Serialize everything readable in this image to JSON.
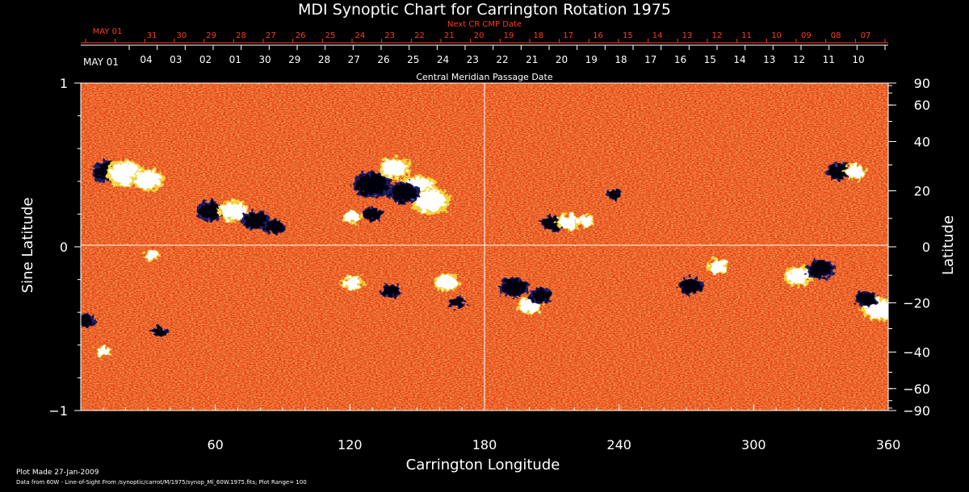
{
  "chart_data": {
    "type": "heatmap",
    "title": "MDI Synoptic Chart for Carrington Rotation 1975",
    "xlabel": "Carrington Longitude",
    "ylabel_left": "Sine Latitude",
    "ylabel_right": "Latitude",
    "xlim": [
      0,
      360
    ],
    "ylim": [
      -1,
      1
    ],
    "x_ticks": [
      60,
      120,
      180,
      240,
      300,
      360
    ],
    "y_left_ticks": [
      {
        "value": 1,
        "label": "1"
      },
      {
        "value": 0,
        "label": "0"
      },
      {
        "value": -1,
        "label": "−1"
      }
    ],
    "y_right_ticks": [
      90,
      60,
      40,
      20,
      0,
      -20,
      -40,
      -60,
      -90
    ],
    "grid": "lines at longitude 180 and sine latitude 0",
    "top_axis_red": {
      "title": "Next CR CMP Date",
      "labels": [
        "MAY 01",
        "31",
        "30",
        "29",
        "28",
        "27",
        "26",
        "25",
        "24",
        "23",
        "22",
        "21",
        "20",
        "19",
        "18",
        "17",
        "16",
        "15",
        "14",
        "13",
        "12",
        "11",
        "10",
        "09",
        "08",
        "07"
      ]
    },
    "top_axis_white": {
      "title": "Central Meridian Passage Date",
      "labels": [
        "MAY 01",
        "04",
        "03",
        "02",
        "01",
        "30",
        "29",
        "28",
        "27",
        "26",
        "25",
        "24",
        "23",
        "22",
        "21",
        "20",
        "19",
        "18",
        "17",
        "16",
        "15",
        "14",
        "13",
        "12",
        "11",
        "10"
      ]
    },
    "footer_line1": "Plot Made 27-Jan-2009",
    "footer_line2": "Data from 60W - Line-of-Sight From /synoptic/carrot/M/1975/synop_Ml_60W.1975.fits; Plot Range= 100",
    "active_regions": [
      {
        "lon": 12,
        "sinlat": 0.46,
        "polarity": "negative",
        "size": 1.0
      },
      {
        "lon": 20,
        "sinlat": 0.45,
        "polarity": "positive",
        "size": 1.2
      },
      {
        "lon": 30,
        "sinlat": 0.41,
        "polarity": "positive",
        "size": 1.0
      },
      {
        "lon": 58,
        "sinlat": 0.22,
        "polarity": "negative",
        "size": 0.9
      },
      {
        "lon": 68,
        "sinlat": 0.22,
        "polarity": "positive",
        "size": 1.0
      },
      {
        "lon": 78,
        "sinlat": 0.16,
        "polarity": "negative",
        "size": 0.9
      },
      {
        "lon": 86,
        "sinlat": 0.12,
        "polarity": "negative",
        "size": 0.7
      },
      {
        "lon": 130,
        "sinlat": 0.38,
        "polarity": "negative",
        "size": 1.2
      },
      {
        "lon": 140,
        "sinlat": 0.48,
        "polarity": "positive",
        "size": 1.0
      },
      {
        "lon": 150,
        "sinlat": 0.35,
        "polarity": "positive",
        "size": 1.3
      },
      {
        "lon": 156,
        "sinlat": 0.28,
        "polarity": "positive",
        "size": 1.2
      },
      {
        "lon": 144,
        "sinlat": 0.33,
        "polarity": "negative",
        "size": 1.0
      },
      {
        "lon": 121,
        "sinlat": 0.18,
        "polarity": "positive",
        "size": 0.6
      },
      {
        "lon": 130,
        "sinlat": 0.2,
        "polarity": "negative",
        "size": 0.6
      },
      {
        "lon": 210,
        "sinlat": 0.14,
        "polarity": "negative",
        "size": 0.7
      },
      {
        "lon": 218,
        "sinlat": 0.15,
        "polarity": "positive",
        "size": 0.8
      },
      {
        "lon": 225,
        "sinlat": 0.16,
        "polarity": "positive",
        "size": 0.6
      },
      {
        "lon": 238,
        "sinlat": 0.32,
        "polarity": "negative",
        "size": 0.5
      },
      {
        "lon": 338,
        "sinlat": 0.46,
        "polarity": "negative",
        "size": 0.8
      },
      {
        "lon": 345,
        "sinlat": 0.46,
        "polarity": "positive",
        "size": 0.7
      },
      {
        "lon": 193,
        "sinlat": -0.25,
        "polarity": "negative",
        "size": 0.9
      },
      {
        "lon": 200,
        "sinlat": -0.36,
        "polarity": "positive",
        "size": 0.8
      },
      {
        "lon": 205,
        "sinlat": -0.3,
        "polarity": "negative",
        "size": 0.7
      },
      {
        "lon": 121,
        "sinlat": -0.22,
        "polarity": "positive",
        "size": 0.7
      },
      {
        "lon": 138,
        "sinlat": -0.27,
        "polarity": "negative",
        "size": 0.6
      },
      {
        "lon": 163,
        "sinlat": -0.22,
        "polarity": "positive",
        "size": 0.8
      },
      {
        "lon": 168,
        "sinlat": -0.34,
        "polarity": "negative",
        "size": 0.5
      },
      {
        "lon": 272,
        "sinlat": -0.24,
        "polarity": "negative",
        "size": 0.8
      },
      {
        "lon": 284,
        "sinlat": -0.12,
        "polarity": "positive",
        "size": 0.7
      },
      {
        "lon": 320,
        "sinlat": -0.18,
        "polarity": "positive",
        "size": 0.9
      },
      {
        "lon": 330,
        "sinlat": -0.14,
        "polarity": "negative",
        "size": 0.9
      },
      {
        "lon": 356,
        "sinlat": -0.38,
        "polarity": "positive",
        "size": 1.1
      },
      {
        "lon": 350,
        "sinlat": -0.32,
        "polarity": "negative",
        "size": 0.7
      },
      {
        "lon": 2,
        "sinlat": -0.45,
        "polarity": "negative",
        "size": 0.6
      },
      {
        "lon": 10,
        "sinlat": -0.64,
        "polarity": "positive",
        "size": 0.5
      },
      {
        "lon": 32,
        "sinlat": -0.05,
        "polarity": "positive",
        "size": 0.5
      },
      {
        "lon": 35,
        "sinlat": -0.52,
        "polarity": "negative",
        "size": 0.5
      }
    ]
  }
}
